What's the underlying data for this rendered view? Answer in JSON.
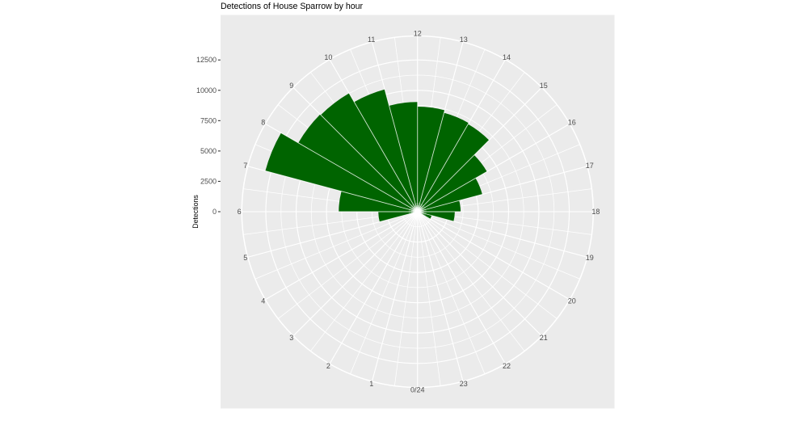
{
  "title": "Detections of House Sparrow by hour",
  "chart_data": {
    "type": "bar",
    "coord": "polar",
    "title": "Detections of House Sparrow by hour",
    "xlabel": "",
    "ylabel": "Detections",
    "categories": [
      0,
      1,
      2,
      3,
      4,
      5,
      6,
      7,
      8,
      9,
      10,
      11,
      12,
      13,
      14,
      15,
      16,
      17,
      18,
      19,
      20,
      21,
      22,
      23
    ],
    "values": [
      0,
      0,
      0,
      0,
      0,
      3230,
      6490,
      12980,
      11340,
      11270,
      10430,
      9040,
      8650,
      8430,
      8330,
      6600,
      5520,
      3550,
      3070,
      1200,
      0,
      0,
      0,
      0
    ],
    "theta_labels": [
      "0/24",
      "1",
      "2",
      "3",
      "4",
      "5",
      "6",
      "7",
      "8",
      "9",
      "10",
      "11",
      "12",
      "13",
      "14",
      "15",
      "16",
      "17",
      "18",
      "19",
      "20",
      "21",
      "22",
      "23"
    ],
    "theta_label_note": "hour 0/24 at bottom, 6 at left, 12 at top, 18 at right (clockwise)",
    "r_axis": {
      "ticks": [
        0,
        2500,
        5000,
        7500,
        10000,
        12500
      ],
      "tick_labels": [
        "0",
        "2500",
        "5000",
        "7500",
        "10000",
        "12500"
      ],
      "minor_breaks": [
        1250,
        3750,
        6250,
        8750,
        11250
      ],
      "max": 12980
    },
    "grid": true,
    "legend": "none",
    "colors": {
      "bar": "#006400",
      "panel_background": "#EBEBEB",
      "gridline": "#FFFFFF",
      "axis_text": "#4D4D4D",
      "tick_mark": "#333333",
      "title_text": "#000000",
      "figure_background": "#FFFFFF"
    }
  }
}
